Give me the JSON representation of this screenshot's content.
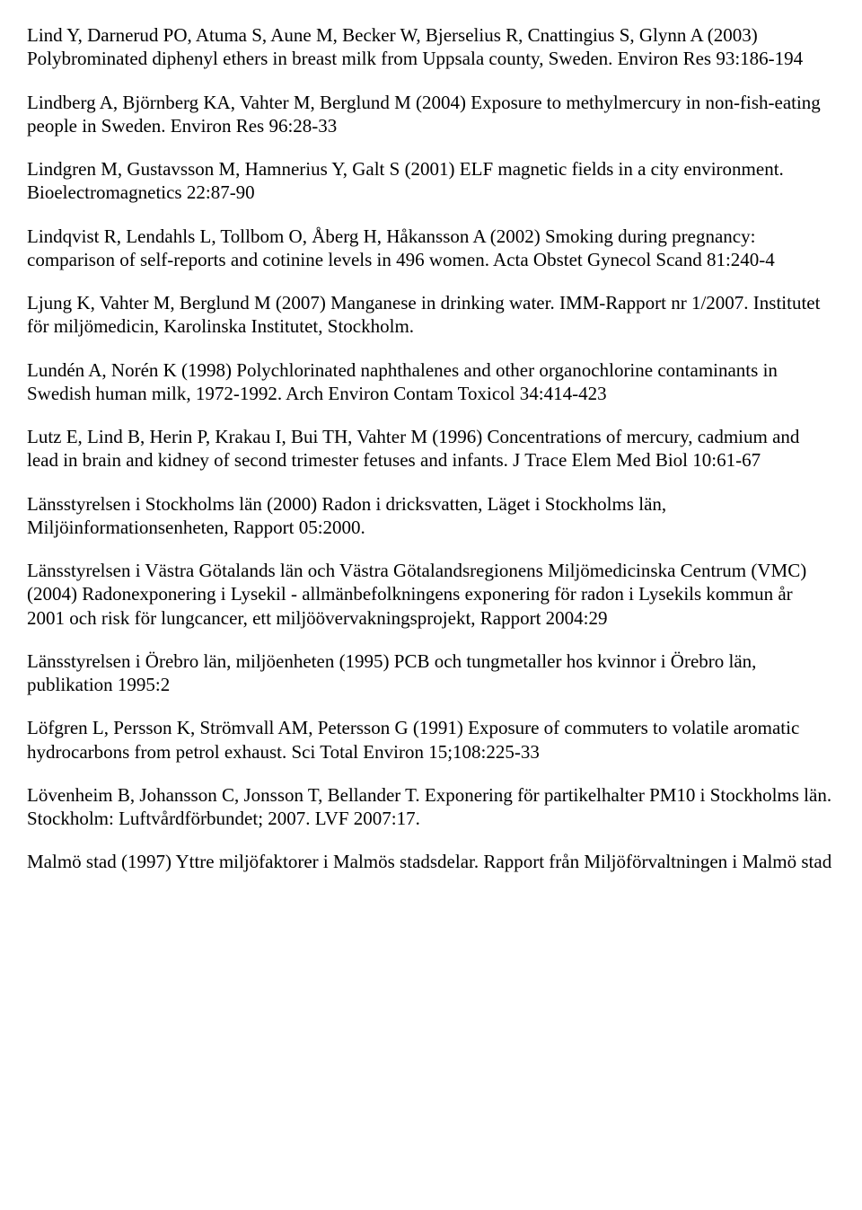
{
  "refs": [
    "Lind Y, Darnerud PO, Atuma S, Aune M, Becker W, Bjerselius R, Cnattingius S, Glynn A (2003) Polybrominated diphenyl ethers in breast milk from Uppsala county, Sweden. Environ Res 93:186-194",
    "Lindberg A, Björnberg KA, Vahter M, Berglund M (2004) Exposure to methylmercury in non-fish-eating people in Sweden. Environ Res 96:28-33",
    "Lindgren M, Gustavsson M, Hamnerius Y, Galt S (2001) ELF magnetic fields in a city environment. Bioelectromagnetics 22:87-90",
    "Lindqvist R, Lendahls L, Tollbom O, Åberg H, Håkansson A (2002) Smoking during pregnancy: comparison of self-reports and cotinine levels in 496 women. Acta Obstet Gynecol Scand 81:240-4",
    "Ljung K, Vahter M, Berglund M (2007) Manganese in drinking water. IMM-Rapport nr 1/2007. Institutet för miljömedicin, Karolinska Institutet, Stockholm.",
    "Lundén A, Norén K (1998) Polychlorinated naphthalenes and other organochlorine contaminants in Swedish human milk, 1972-1992. Arch Environ Contam Toxicol 34:414-423",
    "Lutz E, Lind B, Herin P, Krakau I, Bui TH, Vahter M (1996) Concentrations of mercury, cadmium and lead in brain and kidney of second trimester fetuses and infants. J Trace Elem Med Biol 10:61-67",
    "Länsstyrelsen i Stockholms län (2000) Radon i dricksvatten, Läget i Stockholms län, Miljöinformationsenheten, Rapport 05:2000.",
    "Länsstyrelsen i Västra Götalands län och Västra Götalandsregionens Miljömedicinska Centrum (VMC) (2004) Radonexponering i Lysekil - allmänbefolkningens exponering för radon i Lysekils kommun år 2001 och risk för lungcancer, ett miljöövervakningsprojekt, Rapport 2004:29",
    "Länsstyrelsen i Örebro län, miljöenheten (1995) PCB och tungmetaller hos kvinnor i Örebro län, publikation 1995:2",
    "Löfgren L, Persson K, Strömvall AM, Petersson G (1991) Exposure of commuters to volatile aromatic hydrocarbons from petrol exhaust. Sci Total Environ 15;108:225-33",
    "Lövenheim B, Johansson C, Jonsson T, Bellander T. Exponering för partikelhalter PM10 i Stockholms län. Stockholm: Luftvårdförbundet; 2007. LVF 2007:17.",
    "Malmö stad (1997) Yttre miljöfaktorer i Malmös stadsdelar. Rapport från Miljöförvaltningen i Malmö stad"
  ]
}
